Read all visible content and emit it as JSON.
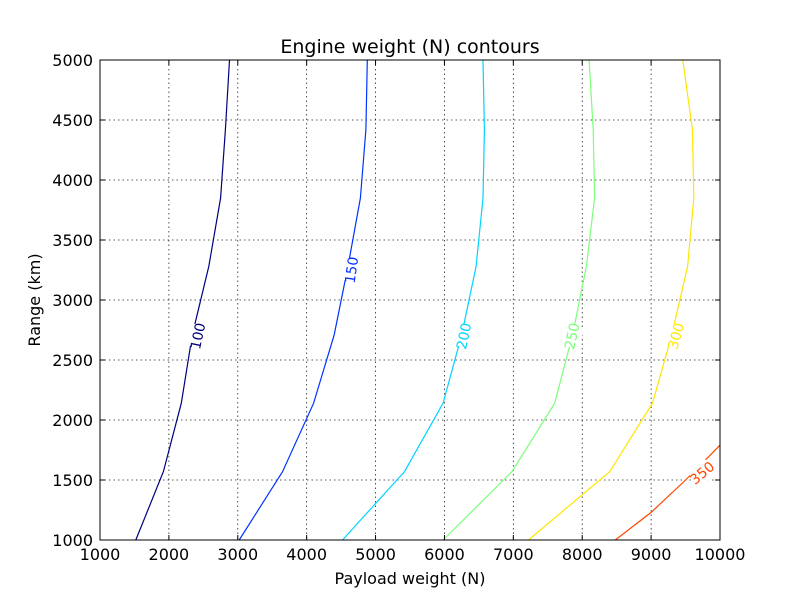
{
  "chart_data": {
    "type": "contour",
    "title": "Engine weight (N) contours",
    "xlabel": "Payload weight (N)",
    "ylabel": "Range (km)",
    "xlim": [
      1000,
      10000
    ],
    "ylim": [
      1000,
      5000
    ],
    "xticks": [
      1000,
      2000,
      3000,
      4000,
      5000,
      6000,
      7000,
      8000,
      9000,
      10000
    ],
    "yticks": [
      1000,
      1500,
      2000,
      2500,
      3000,
      3500,
      4000,
      4500,
      5000
    ],
    "grid": true,
    "series": [
      {
        "name": "100",
        "color": "#00007f",
        "label_at": {
          "x": 2420,
          "y": 2700,
          "angle_deg": -78
        },
        "points": [
          [
            1520,
            1000
          ],
          [
            1920,
            1570
          ],
          [
            2180,
            2140
          ],
          [
            2340,
            2710
          ],
          [
            2580,
            3280
          ],
          [
            2750,
            3850
          ],
          [
            2820,
            4420
          ],
          [
            2880,
            5000
          ]
        ]
      },
      {
        "name": "150",
        "color": "#0033ff",
        "label_at": {
          "x": 4650,
          "y": 3250,
          "angle_deg": -82
        },
        "points": [
          [
            3020,
            1000
          ],
          [
            3650,
            1570
          ],
          [
            4100,
            2140
          ],
          [
            4400,
            2710
          ],
          [
            4600,
            3280
          ],
          [
            4780,
            3850
          ],
          [
            4860,
            4420
          ],
          [
            4880,
            5000
          ]
        ]
      },
      {
        "name": "200",
        "color": "#00d4ff",
        "label_at": {
          "x": 6280,
          "y": 2700,
          "angle_deg": -78
        },
        "points": [
          [
            4520,
            1000
          ],
          [
            5420,
            1570
          ],
          [
            5980,
            2140
          ],
          [
            6250,
            2710
          ],
          [
            6460,
            3280
          ],
          [
            6560,
            3850
          ],
          [
            6580,
            4420
          ],
          [
            6560,
            5000
          ]
        ]
      },
      {
        "name": "250",
        "color": "#7cff79",
        "label_at": {
          "x": 7850,
          "y": 2700,
          "angle_deg": -78
        },
        "points": [
          [
            5980,
            1000
          ],
          [
            6980,
            1570
          ],
          [
            7600,
            2140
          ],
          [
            7860,
            2710
          ],
          [
            8060,
            3280
          ],
          [
            8180,
            3850
          ],
          [
            8160,
            4420
          ],
          [
            8100,
            5000
          ]
        ]
      },
      {
        "name": "300",
        "color": "#ffe600",
        "label_at": {
          "x": 9360,
          "y": 2700,
          "angle_deg": -74
        },
        "points": [
          [
            7220,
            1000
          ],
          [
            8400,
            1570
          ],
          [
            9020,
            2140
          ],
          [
            9300,
            2710
          ],
          [
            9530,
            3280
          ],
          [
            9620,
            3850
          ],
          [
            9600,
            4420
          ],
          [
            9460,
            5000
          ]
        ]
      },
      {
        "name": "350",
        "color": "#ff4700",
        "label_at": {
          "x": 9740,
          "y": 1560,
          "angle_deg": -40
        },
        "points": [
          [
            8480,
            1000
          ],
          [
            9000,
            1230
          ],
          [
            9500,
            1500
          ],
          [
            10000,
            1790
          ]
        ]
      }
    ]
  }
}
